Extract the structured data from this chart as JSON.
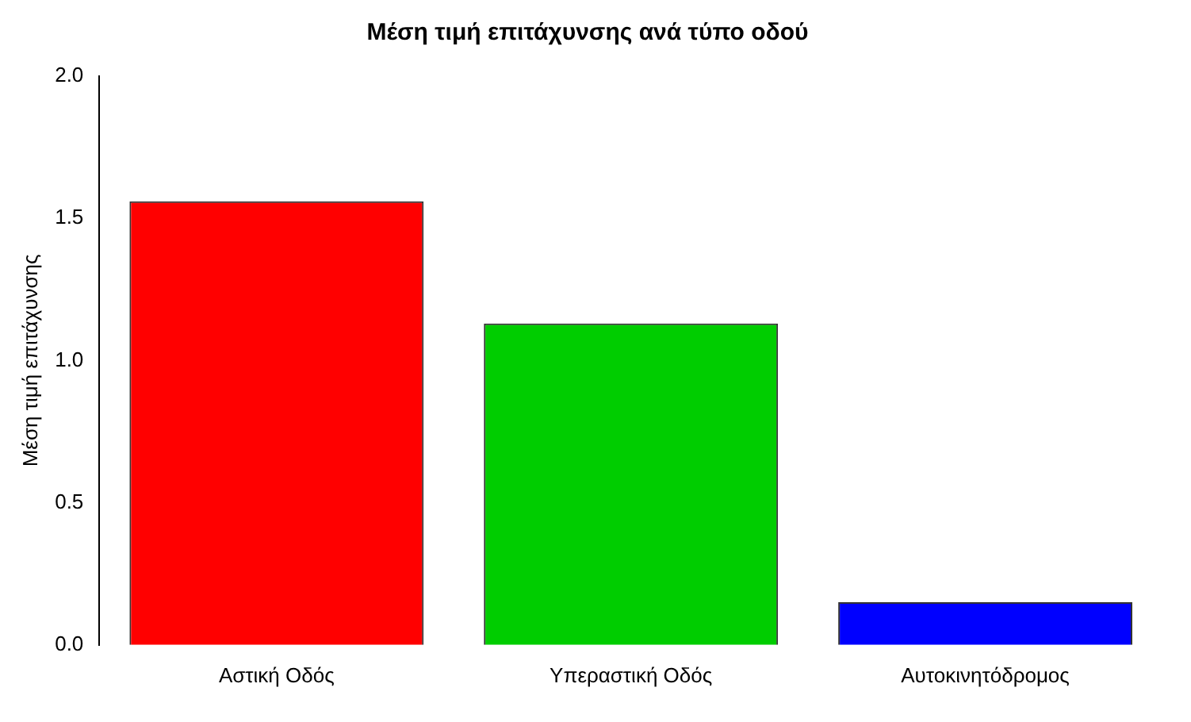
{
  "chart_data": {
    "type": "bar",
    "title": "Μέση τιμή επιτάχυνσης ανά τύπο οδού",
    "ylabel": "Μέση τιμή επιτάχυνσης",
    "categories": [
      "Αστική Οδός",
      "Υπεραστική Οδός",
      "Αυτοκινητόδρομος"
    ],
    "values": [
      1.56,
      1.13,
      0.15
    ],
    "colors": [
      "#ff0000",
      "#00cd00",
      "#0000ff"
    ],
    "ylim": [
      0,
      2
    ],
    "yticks": [
      {
        "value": 0,
        "label": "0.0"
      },
      {
        "value": 0.5,
        "label": "0.5"
      },
      {
        "value": 1,
        "label": "1.0"
      },
      {
        "value": 1.5,
        "label": "1.5"
      },
      {
        "value": 2,
        "label": "2.0"
      }
    ],
    "grid": false,
    "legend": false
  }
}
